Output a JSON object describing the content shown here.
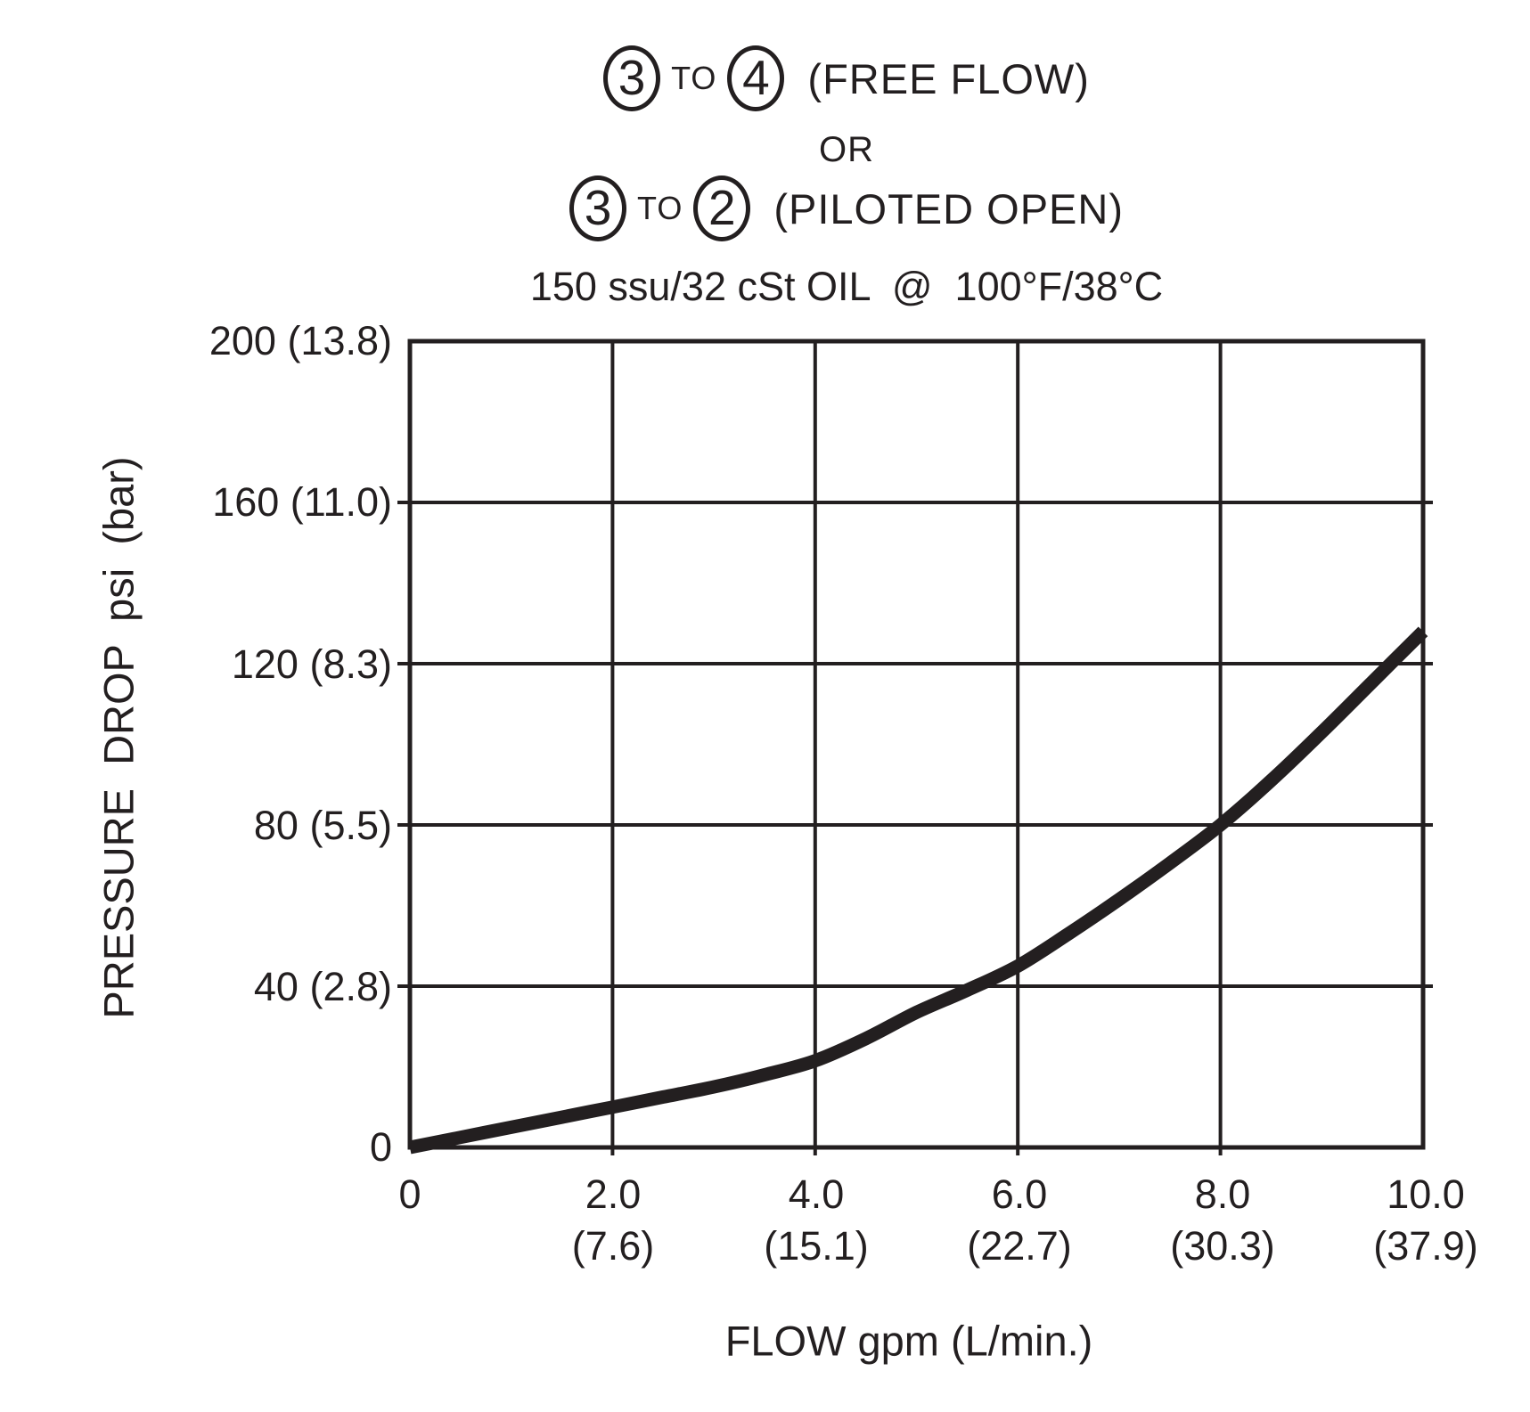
{
  "colors": {
    "ink": "#231f20",
    "background": "#ffffff"
  },
  "header": {
    "line1": {
      "port_a": "3",
      "connector": "TO",
      "port_b": "4",
      "label": "(FREE FLOW)"
    },
    "or_text": "OR",
    "line3": {
      "port_a": "3",
      "connector": "TO",
      "port_b": "2",
      "label": "(PILOTED OPEN)"
    },
    "subtitle": "150 ssu/32 cSt OIL  @  100°F/38°C"
  },
  "chart_data": {
    "type": "line",
    "title": "3 TO 4 (FREE FLOW) OR 3 TO 2 (PILOTED OPEN)",
    "subtitle": "150 ssu/32 cSt OIL @ 100°F/38°C",
    "xlabel": "FLOW gpm (L/min.)",
    "ylabel": "PRESSURE  DROP  psi  (bar)",
    "xlim": [
      0,
      10
    ],
    "ylim": [
      0,
      200
    ],
    "grid": true,
    "legend": "none",
    "xticks": [
      {
        "value": 0,
        "label": "0",
        "sub": ""
      },
      {
        "value": 2,
        "label": "2.0",
        "sub": "(7.6)"
      },
      {
        "value": 4,
        "label": "4.0",
        "sub": "(15.1)"
      },
      {
        "value": 6,
        "label": "6.0",
        "sub": "(22.7)"
      },
      {
        "value": 8,
        "label": "8.0",
        "sub": "(30.3)"
      },
      {
        "value": 10,
        "label": "10.0",
        "sub": "(37.9)"
      }
    ],
    "yticks": [
      {
        "value": 0,
        "label": "0"
      },
      {
        "value": 40,
        "label": "40 (2.8)"
      },
      {
        "value": 80,
        "label": "80 (5.5)"
      },
      {
        "value": 120,
        "label": "120 (8.3)"
      },
      {
        "value": 160,
        "label": "160 (11.0)"
      },
      {
        "value": 200,
        "label": "200 (13.8)"
      }
    ],
    "series": [
      {
        "name": "pressure-drop-vs-flow",
        "x": [
          0,
          0.5,
          1,
          1.5,
          2,
          2.5,
          3,
          3.5,
          4,
          4.5,
          5,
          5.5,
          6,
          6.5,
          7,
          7.5,
          8,
          8.5,
          9,
          9.5,
          10
        ],
        "y": [
          0,
          2.5,
          5,
          7.5,
          10,
          12.5,
          15,
          18,
          21.5,
          27,
          33.5,
          39,
          45,
          53,
          61.5,
          70.5,
          80,
          91,
          103,
          115.5,
          128
        ]
      }
    ]
  }
}
